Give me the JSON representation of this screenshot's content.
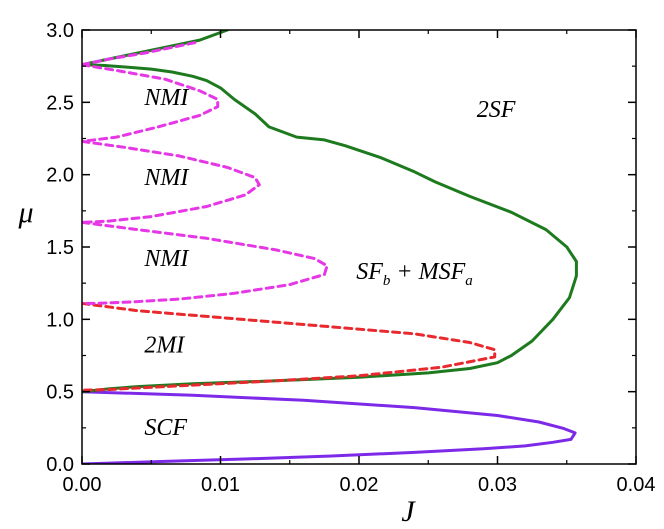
{
  "chart_data": {
    "type": "line",
    "title": "",
    "xlabel": "J",
    "ylabel": "μ",
    "xlim": [
      0,
      0.04
    ],
    "ylim": [
      0,
      3.0
    ],
    "x_ticks": [
      "0.00",
      "0.01",
      "0.02",
      "0.03",
      "0.04"
    ],
    "y_ticks": [
      "0.0",
      "0.5",
      "1.0",
      "1.5",
      "2.0",
      "2.5",
      "3.0"
    ],
    "grid": false,
    "legend": "none",
    "region_labels": [
      {
        "main": "SCF",
        "sub1": "",
        "mid": "",
        "sub2": "",
        "x": 0.0045,
        "y": 0.2
      },
      {
        "main": "2MI",
        "sub1": "",
        "mid": "",
        "sub2": "",
        "x": 0.0045,
        "y": 0.77
      },
      {
        "main": "NMI",
        "sub1": "",
        "mid": "",
        "sub2": "",
        "x": 0.0045,
        "y": 1.37
      },
      {
        "main": "NMI",
        "sub1": "",
        "mid": "",
        "sub2": "",
        "x": 0.0045,
        "y": 1.93
      },
      {
        "main": "NMI",
        "sub1": "",
        "mid": "",
        "sub2": "",
        "x": 0.0045,
        "y": 2.48
      },
      {
        "main": "2SF",
        "sub1": "",
        "mid": "",
        "sub2": "",
        "x": 0.0285,
        "y": 2.4
      },
      {
        "main": "SF",
        "sub1": "b",
        "mid": " + MSF",
        "sub2": "a",
        "x": 0.0198,
        "y": 1.28
      }
    ],
    "series": [
      {
        "color": "#7d2ae8",
        "style": "solid",
        "x": [
          0,
          0.008,
          0.016,
          0.024,
          0.03,
          0.033,
          0.0348,
          0.0356,
          0.0353,
          0.034,
          0.032,
          0.029,
          0.024,
          0.018,
          0.012,
          0.006,
          0.002,
          0
        ],
        "y": [
          0.5,
          0.475,
          0.44,
          0.39,
          0.335,
          0.29,
          0.245,
          0.215,
          0.17,
          0.15,
          0.125,
          0.105,
          0.08,
          0.055,
          0.035,
          0.018,
          0.006,
          0
        ]
      },
      {
        "color": "#1e7a1e",
        "style": "solid",
        "x": [
          0,
          0.002,
          0.004,
          0.008,
          0.014,
          0.02,
          0.025,
          0.028,
          0.03,
          0.031,
          0.0325,
          0.034,
          0.0352,
          0.0357,
          0.0357,
          0.035,
          0.0335,
          0.031,
          0.028,
          0.0255,
          0.024,
          0.0215,
          0.019,
          0.0175,
          0.0155,
          0.0135,
          0.0125,
          0.011,
          0.01,
          0.009,
          0.008,
          0.0065,
          0.005,
          0.003,
          0.0015,
          0
        ],
        "y": [
          0.5,
          0.52,
          0.535,
          0.555,
          0.575,
          0.6,
          0.63,
          0.66,
          0.7,
          0.75,
          0.85,
          1.0,
          1.15,
          1.3,
          1.4,
          1.5,
          1.62,
          1.74,
          1.85,
          1.95,
          2.02,
          2.12,
          2.2,
          2.24,
          2.26,
          2.33,
          2.42,
          2.52,
          2.6,
          2.65,
          2.68,
          2.71,
          2.73,
          2.745,
          2.755,
          2.76
        ]
      },
      {
        "color": "#1e7a1e",
        "style": "solid",
        "x": [
          0,
          0.002,
          0.004,
          0.006,
          0.0085,
          0.0105
        ],
        "y": [
          2.76,
          2.8,
          2.84,
          2.88,
          2.93,
          3.0
        ]
      },
      {
        "color": "#e8292e",
        "style": "dashed",
        "x": [
          0,
          0.004,
          0.009,
          0.014,
          0.019,
          0.024,
          0.028,
          0.0298,
          0.0298,
          0.026,
          0.02,
          0.014,
          0.009,
          0.005,
          0.002,
          0
        ],
        "y": [
          1.11,
          1.06,
          1.02,
          0.98,
          0.94,
          0.9,
          0.84,
          0.79,
          0.74,
          0.67,
          0.61,
          0.575,
          0.55,
          0.53,
          0.515,
          0.51
        ]
      },
      {
        "color": "#e637e6",
        "style": "dashed",
        "x": [
          0,
          0.004,
          0.009,
          0.014,
          0.0168,
          0.0177,
          0.0175,
          0.015,
          0.011,
          0.007,
          0.0035,
          0.001,
          0
        ],
        "y": [
          1.67,
          1.62,
          1.56,
          1.48,
          1.42,
          1.37,
          1.31,
          1.24,
          1.18,
          1.14,
          1.12,
          1.11,
          1.11
        ]
      },
      {
        "color": "#e637e6",
        "style": "dashed",
        "x": [
          0,
          0.003,
          0.007,
          0.0105,
          0.0125,
          0.0128,
          0.0118,
          0.009,
          0.005,
          0.002,
          0
        ],
        "y": [
          2.23,
          2.19,
          2.13,
          2.05,
          1.98,
          1.93,
          1.86,
          1.78,
          1.71,
          1.68,
          1.67
        ]
      },
      {
        "color": "#e637e6",
        "style": "dashed",
        "x": [
          0,
          0.0025,
          0.006,
          0.0085,
          0.0098,
          0.0098,
          0.0085,
          0.0055,
          0.0025,
          0
        ],
        "y": [
          2.76,
          2.72,
          2.66,
          2.58,
          2.52,
          2.47,
          2.41,
          2.33,
          2.26,
          2.23
        ]
      },
      {
        "color": "#e637e6",
        "style": "dashed",
        "x": [
          0,
          0.002,
          0.0045,
          0.0065,
          0.0085
        ],
        "y": [
          2.76,
          2.8,
          2.84,
          2.88,
          2.92
        ]
      }
    ]
  }
}
